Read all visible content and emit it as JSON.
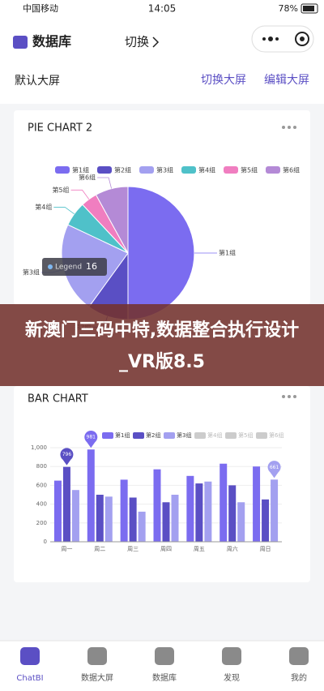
{
  "status_bar": {
    "carrier": "中国移动",
    "time": "14:05",
    "battery": "78%"
  },
  "header": {
    "title": "数据库",
    "switch": "切换"
  },
  "toolbar": {
    "title": "默认大屏",
    "actions": [
      "切换大屏",
      "编辑大屏"
    ]
  },
  "banner": {
    "lines": [
      "新澳门三码中特,数据整合执行设计",
      "_VR版8.5"
    ]
  },
  "tabs": [
    "ChatBI",
    "数据大屏",
    "数据库",
    "发现",
    "我的"
  ],
  "chart_data": [
    {
      "type": "pie",
      "title": "PIE CHART 2",
      "categories": [
        "第1组",
        "第2组",
        "第3组",
        "第4组",
        "第5组",
        "第6组"
      ],
      "values": [
        50,
        10,
        22,
        6,
        4,
        8
      ],
      "colors": [
        "#7b6cf0",
        "#5a4fc4",
        "#a3a0f0",
        "#4fc1c9",
        "#f07ec0",
        "#b48ad6"
      ],
      "tooltip": {
        "label": "Legend",
        "value": "16"
      }
    },
    {
      "type": "bar",
      "title": "BAR CHART",
      "categories": [
        "周一",
        "周二",
        "周三",
        "周四",
        "周五",
        "周六",
        "周日"
      ],
      "series": [
        {
          "name": "第1组",
          "color": "#7b6cf0",
          "values": [
            650,
            981,
            660,
            770,
            700,
            830,
            800
          ],
          "value_labels": [
            null,
            "981",
            null,
            null,
            null,
            null,
            null
          ]
        },
        {
          "name": "第2组",
          "color": "#5a4fc4",
          "values": [
            796,
            500,
            470,
            420,
            620,
            600,
            450
          ],
          "value_labels": [
            "796",
            null,
            null,
            null,
            null,
            null,
            null
          ]
        },
        {
          "name": "第3组",
          "color": "#a3a0f0",
          "values": [
            550,
            480,
            320,
            500,
            640,
            420,
            661
          ],
          "value_labels": [
            null,
            null,
            null,
            null,
            null,
            null,
            "661"
          ]
        }
      ],
      "legend_hidden": [
        "第4组",
        "第5组",
        "第6组"
      ],
      "ylim": [
        0,
        1000
      ],
      "yticks": [
        0,
        200,
        400,
        600,
        800,
        {
          "value": 1000,
          "label": "1,000"
        }
      ],
      "grid": true
    }
  ]
}
